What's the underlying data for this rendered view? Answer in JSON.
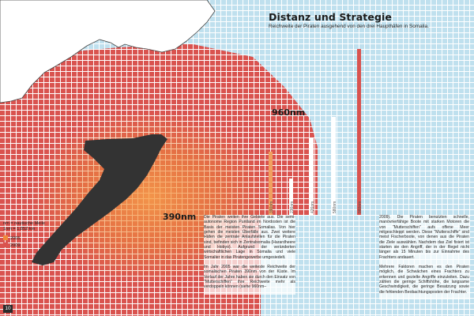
{
  "title": "Distanz und Strategie",
  "subtitle": "Reichweite der Piraten ausgehend von den drei Haupthäfen in Somalia.",
  "range_labels": [
    "960nm",
    "390nm"
  ],
  "unit_note": [
    "nm = nautische Meile",
    "1nm = 1.852 km"
  ],
  "legend": [
    {
      "label": "2005",
      "color": "#ef8a3c"
    },
    {
      "label": "2009",
      "color": "#d9534f"
    }
  ],
  "distance_bars": [
    {
      "label": "390nm"
    },
    {
      "label": "236nm"
    },
    {
      "label": "426nm"
    },
    {
      "label": "580nm"
    },
    {
      "label": "960nm"
    }
  ],
  "text_left": [
    "Die Piraten weiten ihre Gebiete aus. Die semi-autonome Region Puntland im Nordosten ist die Basis der meisten Piraten Somalias. Von hier gehen die meisten Überfälle aus. Zwei weitere Häfen die zentrale Anlaufstellen für die Piraten sind, befinden sich in Zentralsomalia (Harardheere und Hobyo). Aufgrund der veränderten wirtschaftlichen Lage in Somalia und viele Somalier in das Piratengewerbe umgesiedelt.",
    "Im Jahr 2005 war die weiteste Reichweite der somalischen Piraten 390nm von der Küste. Im Verlauf der Jahre haben sie durch den Einsatz von \"Mutterschiffen\" ihre Reichweite mehr als verdoppeln können (siehe 960nm–"
  ],
  "text_right": [
    "2009). Die Piraten benutzten schnelle, manövrierfähige Boote mit starken Motoren die von \"Mutterschiffen\" aufs offene Meer mitgeschleppt werden. Diese \"Mutterschiffe\" sind meist Fischerboote, von denen aus die Piraten die Ziele auswählen. Nachdem das Ziel fixiert ist starten sie den Angriff, der in der Regel nicht länger als 15 Minuten bis zur Einnahme des Frachters andauert.",
    "Mehrere Faktoren machen es den Piraten möglich, die Schwächen eines Frachters zu erkennen und gezielte Angriffe einzuleiten. Dazu zählen die geringe Schiffshöhe, die langsame Geschwindigkeit, die geringe Besatzung sowie die fehlenden Beobachtungsposten der Frachter."
  ],
  "page_number": "10",
  "colors": {
    "sea_grid": "#bfe0ee",
    "range_2009": "#d9534f",
    "range_2005": "#ef8a3c",
    "land_africa": "#ffffff",
    "land_somalia": "#333333"
  }
}
